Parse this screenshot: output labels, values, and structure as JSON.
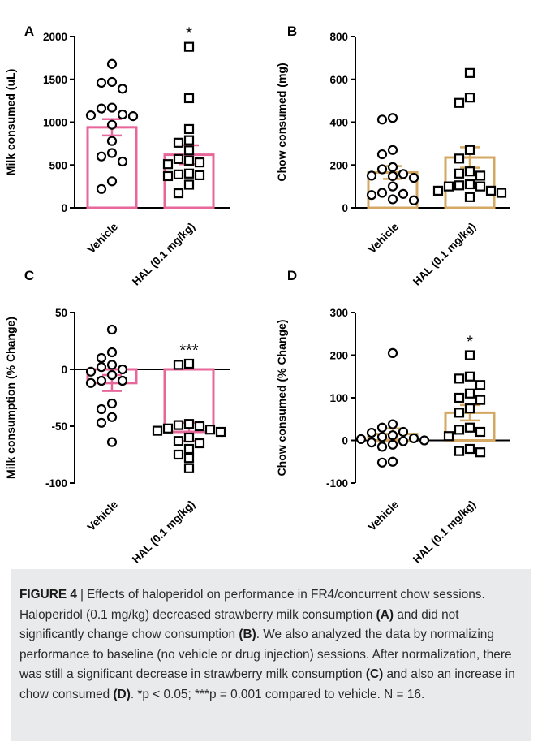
{
  "chart_data": [
    {
      "panel": "A",
      "type": "bar",
      "ylabel": "Milk consumed (uL)",
      "ylim": [
        0,
        2000
      ],
      "yticks": [
        0,
        500,
        1000,
        1500,
        2000
      ],
      "categories": [
        "Vehicle",
        "HAL (0.1 mg/kg)"
      ],
      "values": [
        940,
        620
      ],
      "sem": [
        95,
        110
      ],
      "significance": [
        "",
        "*"
      ],
      "color": "#e8679b",
      "points": [
        [
          1680,
          1470,
          1460,
          1390,
          1170,
          1160,
          1090,
          1080,
          1070,
          970,
          780,
          640,
          600,
          540,
          310,
          220
        ],
        [
          1880,
          1280,
          920,
          790,
          760,
          670,
          570,
          550,
          530,
          510,
          400,
          390,
          380,
          370,
          270,
          170
        ]
      ]
    },
    {
      "panel": "B",
      "type": "bar",
      "ylabel": "Chow consumed (mg)",
      "ylim": [
        0,
        800
      ],
      "yticks": [
        0,
        200,
        400,
        600,
        800
      ],
      "categories": [
        "Vehicle",
        "HAL (0.1 mg/kg)"
      ],
      "values": [
        165,
        235
      ],
      "sem": [
        30,
        48
      ],
      "significance": [
        "",
        ""
      ],
      "color": "#d4a862",
      "points": [
        [
          420,
          412,
          270,
          250,
          190,
          180,
          158,
          150,
          148,
          140,
          100,
          70,
          65,
          60,
          40,
          35
        ],
        [
          630,
          515,
          490,
          270,
          230,
          170,
          160,
          150,
          110,
          105,
          100,
          100,
          80,
          80,
          70,
          50
        ]
      ]
    },
    {
      "panel": "C",
      "type": "bar",
      "ylabel": "Milk consumption (% Change)",
      "ylim": [
        -100,
        50
      ],
      "yticks": [
        -100,
        -50,
        0,
        50
      ],
      "categories": [
        "Vehicle",
        "HAL (0.1 mg/kg)"
      ],
      "values": [
        -12,
        -55
      ],
      "sem": [
        7,
        8
      ],
      "significance": [
        "",
        "***"
      ],
      "color": "#e8679b",
      "points": [
        [
          35,
          15,
          10,
          4,
          2,
          0,
          -2,
          -5,
          -10,
          -10,
          -12,
          -30,
          -35,
          -42,
          -47,
          -64
        ],
        [
          5,
          4,
          -48,
          -49,
          -50,
          -52,
          -53,
          -54,
          -55,
          -60,
          -63,
          -65,
          -70,
          -75,
          -78,
          -87
        ]
      ]
    },
    {
      "panel": "D",
      "type": "bar",
      "ylabel": "Chow consumed (% Change)",
      "ylim": [
        -100,
        300
      ],
      "yticks": [
        -100,
        0,
        100,
        200,
        300
      ],
      "categories": [
        "Vehicle",
        "HAL (0.1 mg/kg)"
      ],
      "values": [
        15,
        65
      ],
      "sem": [
        13,
        18
      ],
      "significance": [
        "",
        "*"
      ],
      "color": "#d4a862",
      "points": [
        [
          205,
          38,
          30,
          20,
          18,
          12,
          8,
          5,
          3,
          0,
          -2,
          -5,
          -10,
          -15,
          -50,
          -52
        ],
        [
          200,
          150,
          145,
          130,
          110,
          100,
          95,
          75,
          65,
          30,
          25,
          20,
          10,
          -20,
          -25,
          -28
        ]
      ]
    }
  ],
  "caption": {
    "figure_label": "FIGURE 4",
    "separator": "|",
    "text_1": "Effects of haloperidol on performance in FR4/concurrent chow sessions. Haloperidol (0.1 mg/kg) decreased strawberry milk consumption ",
    "ref_a": "(A)",
    "text_2": " and did not significantly change chow consumption ",
    "ref_b": "(B)",
    "text_3": ". We also analyzed the data by normalizing performance to baseline (no vehicle or drug injection) sessions. After normalization, there was still a significant decrease in strawberry milk consumption ",
    "ref_c": "(C)",
    "text_4": " and also an increase in chow consumed ",
    "ref_d": "(D)",
    "text_5": ". *p < 0.05; ***p = 0.001 compared to vehicle. N = 16."
  }
}
